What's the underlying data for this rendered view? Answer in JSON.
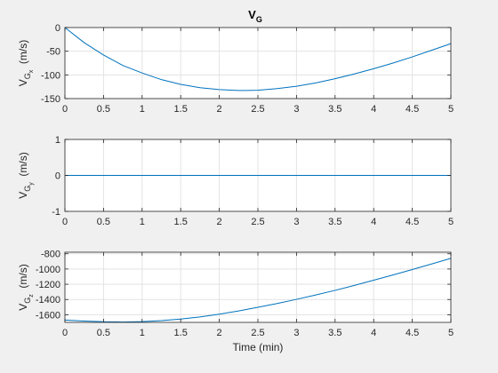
{
  "window": {
    "background": "#f0f0f0"
  },
  "figure": {
    "title": {
      "main": "V",
      "sub": "G"
    },
    "xlabel": "Time (min)"
  },
  "chart_data": [
    {
      "type": "line",
      "ylabel": {
        "v": "V",
        "sub1": "G",
        "sub2": "x",
        "unit": "(m/s)"
      },
      "xlim": [
        0,
        5
      ],
      "ylim": [
        -150,
        0
      ],
      "xticks": [
        0,
        0.5,
        1,
        1.5,
        2,
        2.5,
        3,
        3.5,
        4,
        4.5,
        5
      ],
      "yticks": [
        -150,
        -100,
        -50,
        0
      ],
      "grid": true,
      "line_color": "#0072bd",
      "series": [
        {
          "x": [
            0,
            0.25,
            0.5,
            0.75,
            1,
            1.25,
            1.5,
            1.75,
            2,
            2.25,
            2.33,
            2.5,
            2.75,
            3,
            3.25,
            3.5,
            3.75,
            4,
            4.25,
            4.5,
            4.75,
            5
          ],
          "y": [
            0,
            -32,
            -58,
            -80,
            -96,
            -110,
            -120,
            -127,
            -131,
            -133,
            -133,
            -132.5,
            -129,
            -124,
            -117,
            -108,
            -98,
            -87,
            -75,
            -62,
            -48,
            -34
          ]
        }
      ]
    },
    {
      "type": "line",
      "ylabel": {
        "v": "V",
        "sub1": "G",
        "sub2": "y",
        "unit": "(m/s)"
      },
      "xlim": [
        0,
        5
      ],
      "ylim": [
        -1,
        1
      ],
      "xticks": [
        0,
        0.5,
        1,
        1.5,
        2,
        2.5,
        3,
        3.5,
        4,
        4.5,
        5
      ],
      "yticks": [
        -1,
        0,
        1
      ],
      "grid": true,
      "line_color": "#0072bd",
      "series": [
        {
          "x": [
            0,
            5
          ],
          "y": [
            0,
            0
          ]
        }
      ]
    },
    {
      "type": "line",
      "ylabel": {
        "v": "V",
        "sub1": "G",
        "sub2": "z",
        "unit": "(m/s)"
      },
      "xlim": [
        0,
        5
      ],
      "ylim": [
        -1700,
        -780
      ],
      "xticks": [
        0,
        0.5,
        1,
        1.5,
        2,
        2.5,
        3,
        3.5,
        4,
        4.5,
        5
      ],
      "yticks": [
        -1600,
        -1400,
        -1200,
        -1000,
        -800
      ],
      "grid": true,
      "line_color": "#0072bd",
      "series": [
        {
          "x": [
            0,
            0.25,
            0.5,
            0.75,
            1,
            1.25,
            1.5,
            1.75,
            2,
            2.25,
            2.5,
            2.75,
            3,
            3.25,
            3.5,
            3.75,
            4,
            4.25,
            4.5,
            4.75,
            5
          ],
          "y": [
            -1670,
            -1683,
            -1692,
            -1695,
            -1690,
            -1677,
            -1656,
            -1628,
            -1592,
            -1550,
            -1502,
            -1452,
            -1398,
            -1341,
            -1280,
            -1215,
            -1147,
            -1078,
            -1007,
            -934,
            -860
          ]
        }
      ]
    }
  ]
}
